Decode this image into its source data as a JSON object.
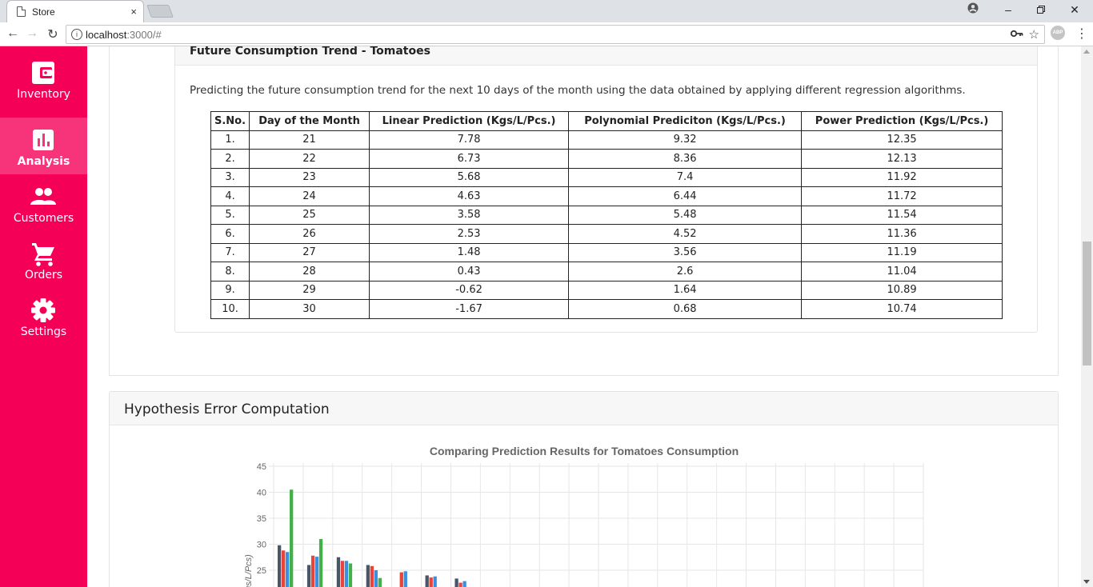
{
  "browser": {
    "tab_title": "Store",
    "tab_close": "×",
    "url_host": "localhost",
    "url_path": ":3000/#",
    "info_icon": "i",
    "abp_label": "ABP"
  },
  "sidebar": {
    "items": [
      {
        "label": "Inventory",
        "icon": "wallet-icon",
        "active": false
      },
      {
        "label": "Analysis",
        "icon": "bar-chart-icon",
        "active": true
      },
      {
        "label": "Customers",
        "icon": "people-icon",
        "active": false
      },
      {
        "label": "Orders",
        "icon": "cart-icon",
        "active": false
      },
      {
        "label": "Settings",
        "icon": "gear-icon",
        "active": false
      }
    ],
    "colors": {
      "background": "#f50057",
      "active": "#f7337a"
    }
  },
  "future_trend": {
    "title": "Future Consumption Trend - Tomatoes",
    "intro": "Predicting the future consumption trend for the next 10 days of the month using the data obtained by applying different regression algorithms.",
    "columns": [
      "S.No.",
      "Day of the Month",
      "Linear Prediction (Kgs/L/Pcs.)",
      "Polynomial Prediciton (Kgs/L/Pcs.)",
      "Power Prediction (Kgs/L/Pcs.)"
    ],
    "rows": [
      [
        "1.",
        "21",
        "7.78",
        "9.32",
        "12.35"
      ],
      [
        "2.",
        "22",
        "6.73",
        "8.36",
        "12.13"
      ],
      [
        "3.",
        "23",
        "5.68",
        "7.4",
        "11.92"
      ],
      [
        "4.",
        "24",
        "4.63",
        "6.44",
        "11.72"
      ],
      [
        "5.",
        "25",
        "3.58",
        "5.48",
        "11.54"
      ],
      [
        "6.",
        "26",
        "2.53",
        "4.52",
        "11.36"
      ],
      [
        "7.",
        "27",
        "1.48",
        "3.56",
        "11.19"
      ],
      [
        "8.",
        "28",
        "0.43",
        "2.6",
        "11.04"
      ],
      [
        "9.",
        "29",
        "-0.62",
        "1.64",
        "10.89"
      ],
      [
        "10.",
        "30",
        "-1.67",
        "0.68",
        "10.74"
      ]
    ]
  },
  "hypothesis": {
    "title": "Hypothesis Error Computation"
  },
  "chart_data": {
    "type": "bar",
    "title": "Comparing Prediction Results for Tomatoes Consumption",
    "ylabel": "(Kgs/L/Pcs)",
    "yticks": [
      "45",
      "40",
      "35",
      "30",
      "25"
    ],
    "ylim": [
      22,
      45
    ],
    "series_colors": [
      "#4a5566",
      "#e8443a",
      "#3a8fe0",
      "#44b04a"
    ],
    "groups": [
      [
        29.8,
        28.8,
        28.5,
        40.5
      ],
      [
        26.0,
        27.8,
        27.6,
        31.0
      ],
      [
        27.5,
        26.8,
        26.8,
        26.3
      ],
      [
        26.0,
        25.8,
        25.0,
        23.5
      ],
      [
        null,
        24.6,
        24.8,
        null
      ],
      [
        24.0,
        23.6,
        23.8,
        null
      ],
      [
        23.4,
        22.6,
        22.9,
        null
      ]
    ]
  }
}
